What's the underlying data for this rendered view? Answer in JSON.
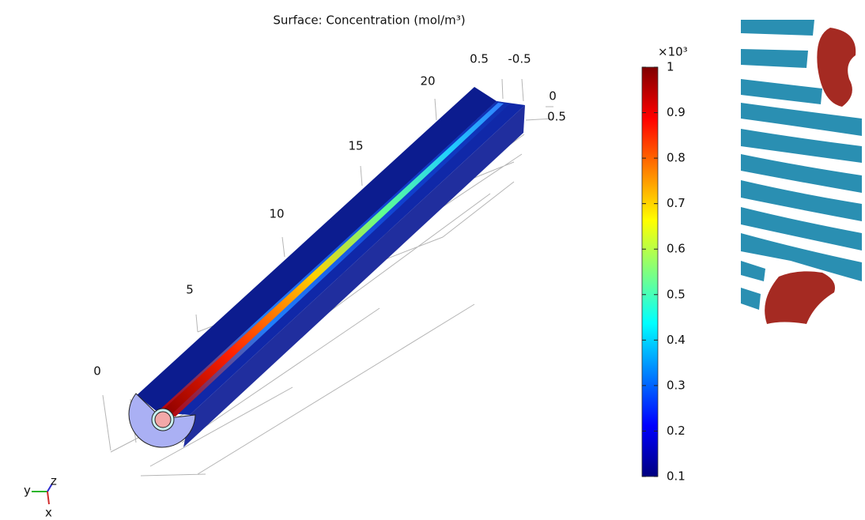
{
  "title": "Surface: Concentration (mol/m³)",
  "axes": {
    "length_ticks": [
      0,
      5,
      10,
      15,
      20
    ],
    "top_ticks": [
      0.5,
      -0.5
    ],
    "side_ticks": [
      0,
      0.5
    ]
  },
  "colorbar": {
    "multiplier": "×10³",
    "ticks": [
      0.1,
      0.2,
      0.3,
      0.4,
      0.5,
      0.6,
      0.7,
      0.8,
      0.9,
      1
    ]
  },
  "triad": {
    "y": "y",
    "z": "z",
    "x": "x"
  }
}
